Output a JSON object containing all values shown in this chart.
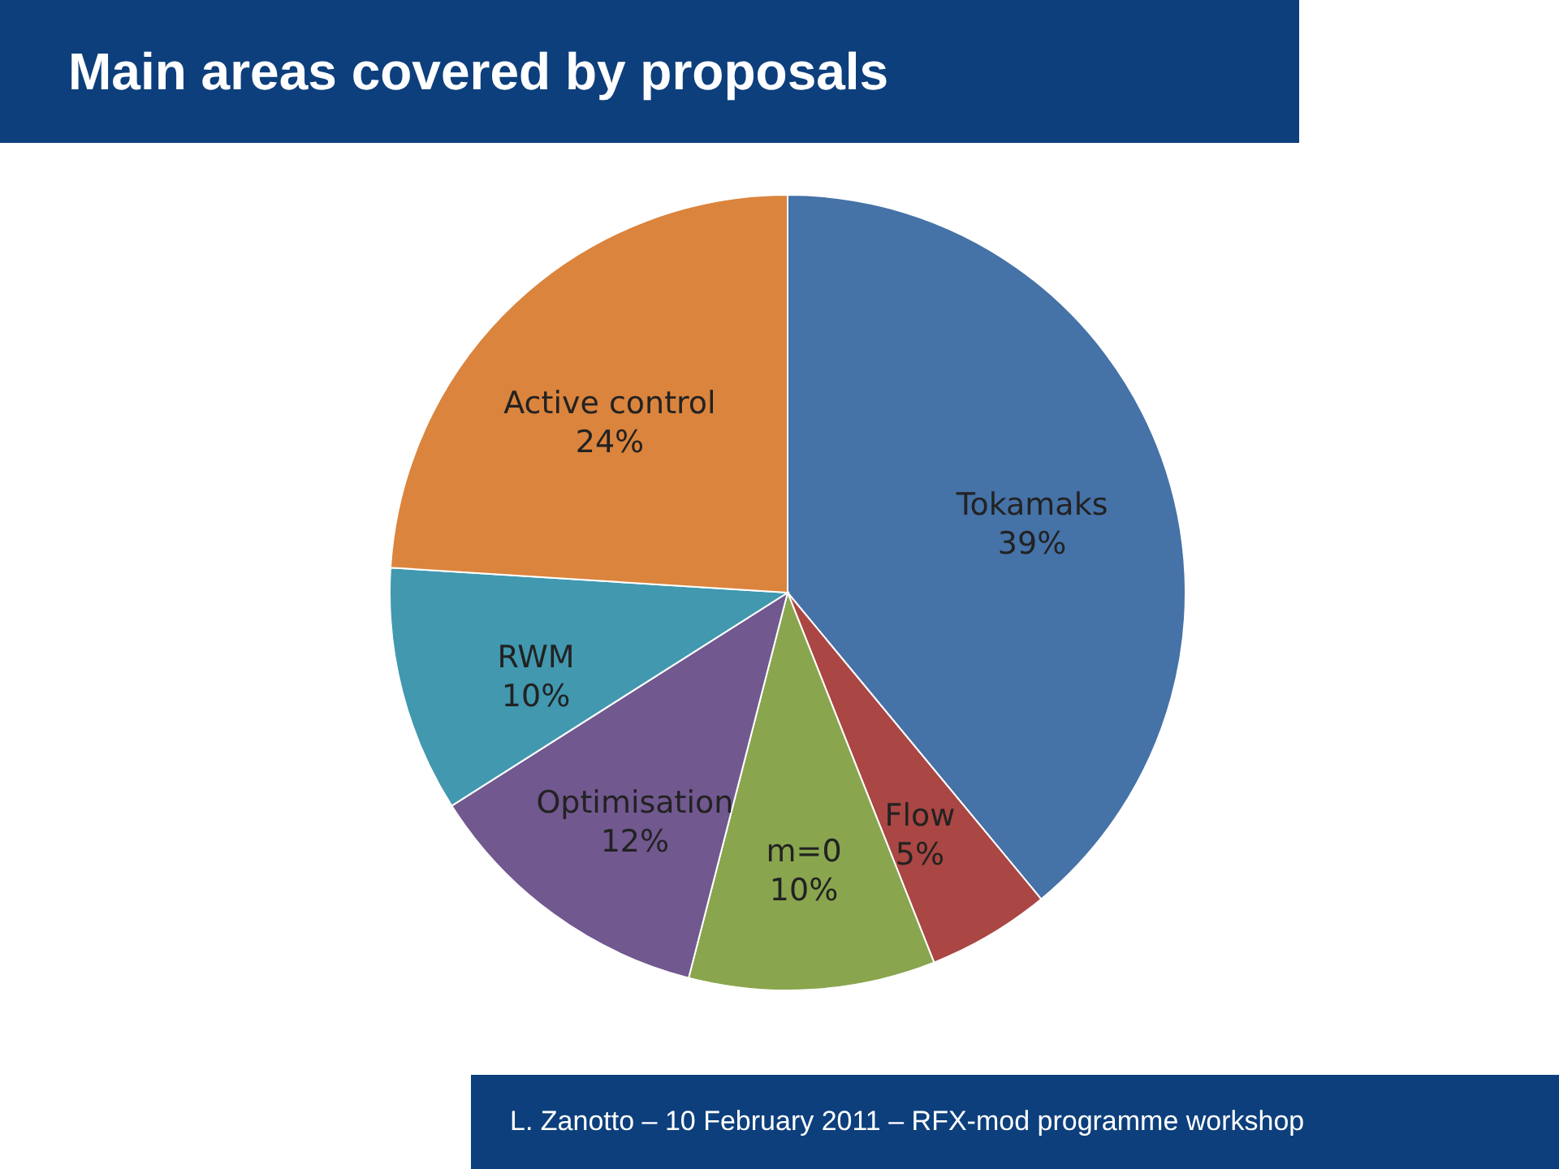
{
  "chart_data": {
    "type": "pie",
    "title": "Main areas covered by proposals",
    "categories": [
      "Tokamaks",
      "Flow",
      "m=0",
      "Optimisation",
      "RWM",
      "Active control"
    ],
    "values": [
      39,
      5,
      10,
      12,
      10,
      24
    ],
    "value_labels": [
      "39%",
      "5%",
      "10%",
      "12%",
      "10%",
      "24%"
    ],
    "colors": [
      "#4572a7",
      "#aa4643",
      "#89a54e",
      "#71588f",
      "#4198af",
      "#db843d"
    ],
    "annotations": [
      "L. Zanotto – 10 February 2011 – RFX-mod programme workshop"
    ]
  }
}
